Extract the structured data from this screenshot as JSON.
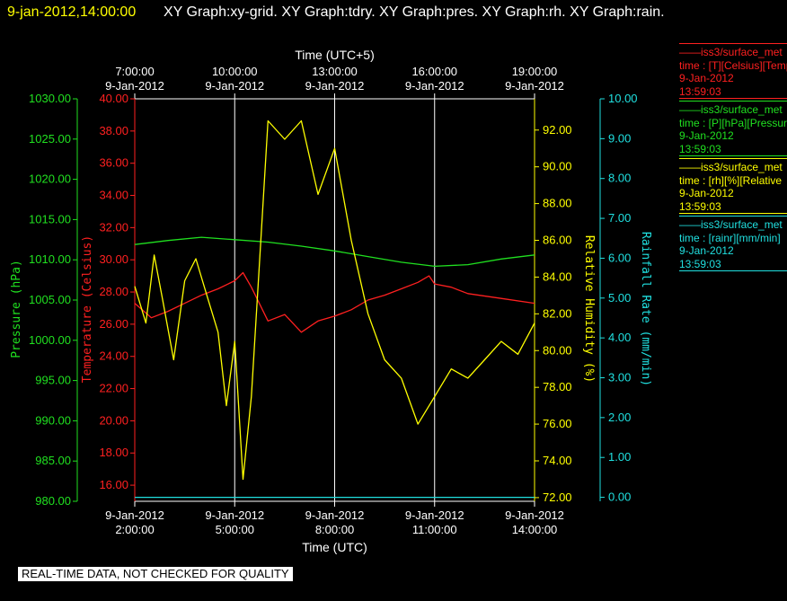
{
  "header": {
    "datetime": "9-jan-2012,14:00:00",
    "graphs": [
      "XY Graph:xy-grid.",
      "XY Graph:tdry.",
      "XY Graph:pres.",
      "XY Graph:rh.",
      "XY Graph:rain."
    ]
  },
  "colors": {
    "background": "#000000",
    "datetime": "#ffff00",
    "text": "#ffffff",
    "temperature": "#ff2020",
    "pressure": "#20e020",
    "humidity": "#ffff00",
    "rain": "#20e0e0",
    "grid": "#ffffff"
  },
  "legend": [
    {
      "line1": "——iss3/surface_met",
      "line2": "time : [T][Celsius][Temp",
      "line3": "9-Jan-2012",
      "line4": "13:59:03",
      "color": "#ff2020"
    },
    {
      "line1": "——iss3/surface_met",
      "line2": "time : [P][hPa][Pressure",
      "line3": "9-Jan-2012",
      "line4": "13:59:03",
      "color": "#20e020"
    },
    {
      "line1": "——iss3/surface_met",
      "line2": "time : [rh][%][Relative",
      "line3": "9-Jan-2012",
      "line4": "13:59:03",
      "color": "#ffff00"
    },
    {
      "line1": "——iss3/surface_met",
      "line2": "time : [rainr][mm/min]",
      "line3": "9-Jan-2012",
      "line4": "13:59:03",
      "color": "#20e0e0"
    }
  ],
  "footer": {
    "quality": "REAL-TIME DATA, NOT CHECKED FOR QUALITY"
  },
  "chart_data": {
    "type": "line",
    "grid": true,
    "x_bottom": {
      "label": "Time (UTC)",
      "range": [
        "2012-01-09 02:00",
        "2012-01-09 14:00"
      ],
      "ticks": [
        {
          "time": "2012-01-09 02:00",
          "date": "9-Jan-2012",
          "clock": "2:00:00"
        },
        {
          "time": "2012-01-09 05:00",
          "date": "9-Jan-2012",
          "clock": "5:00:00"
        },
        {
          "time": "2012-01-09 08:00",
          "date": "9-Jan-2012",
          "clock": "8:00:00"
        },
        {
          "time": "2012-01-09 11:00",
          "date": "9-Jan-2012",
          "clock": "11:00:00"
        },
        {
          "time": "2012-01-09 14:00",
          "date": "9-Jan-2012",
          "clock": "14:00:00"
        }
      ]
    },
    "x_top": {
      "label": "Time (UTC+5)",
      "ticks": [
        {
          "time": "2012-01-09 02:00",
          "clock": "7:00:00",
          "date": "9-Jan-2012"
        },
        {
          "time": "2012-01-09 05:00",
          "clock": "10:00:00",
          "date": "9-Jan-2012"
        },
        {
          "time": "2012-01-09 08:00",
          "clock": "13:00:00",
          "date": "9-Jan-2012"
        },
        {
          "time": "2012-01-09 11:00",
          "clock": "16:00:00",
          "date": "9-Jan-2012"
        },
        {
          "time": "2012-01-09 14:00",
          "clock": "19:00:00",
          "date": "9-Jan-2012"
        }
      ]
    },
    "y_axes": [
      {
        "id": "pressure",
        "label": "Pressure (hPa)",
        "range": [
          980,
          1030
        ],
        "ticks": [
          "980.00",
          "985.00",
          "990.00",
          "995.00",
          "1000.00",
          "1005.00",
          "1010.00",
          "1015.00",
          "1020.00",
          "1025.00",
          "1030.00"
        ]
      },
      {
        "id": "temperature",
        "label": "Temperature (Celsius)",
        "range": [
          15,
          40
        ],
        "ticks": [
          "16.00",
          "18.00",
          "20.00",
          "22.00",
          "24.00",
          "26.00",
          "28.00",
          "30.00",
          "32.00",
          "34.00",
          "36.00",
          "38.00",
          "40.00"
        ]
      },
      {
        "id": "humidity",
        "label": "Relative Humidity (%)",
        "range": [
          71.8,
          93.7
        ],
        "ticks": [
          "72.00",
          "74.00",
          "76.00",
          "78.00",
          "80.00",
          "82.00",
          "84.00",
          "86.00",
          "88.00",
          "90.00",
          "92.00"
        ]
      },
      {
        "id": "rain",
        "label": "Rainfall Rate (mm/min)",
        "range": [
          -0.1,
          10
        ],
        "ticks": [
          "0.00",
          "1.00",
          "2.00",
          "3.00",
          "4.00",
          "5.00",
          "6.00",
          "7.00",
          "8.00",
          "9.00",
          "10.00"
        ]
      }
    ],
    "series": [
      {
        "axis": "pressure",
        "x": [
          "2012-01-09 02:00",
          "2012-01-09 03:00",
          "2012-01-09 04:00",
          "2012-01-09 05:00",
          "2012-01-09 06:00",
          "2012-01-09 07:00",
          "2012-01-09 08:00",
          "2012-01-09 09:00",
          "2012-01-09 10:00",
          "2012-01-09 11:00",
          "2012-01-09 12:00",
          "2012-01-09 13:00",
          "2012-01-09 14:00"
        ],
        "y": [
          1011.9,
          1012.4,
          1012.8,
          1012.5,
          1012.2,
          1011.7,
          1011.1,
          1010.4,
          1009.7,
          1009.2,
          1009.4,
          1010.1,
          1010.6
        ]
      },
      {
        "axis": "temperature",
        "x": [
          "2012-01-09 02:00",
          "2012-01-09 02:30",
          "2012-01-09 03:00",
          "2012-01-09 03:30",
          "2012-01-09 04:00",
          "2012-01-09 04:30",
          "2012-01-09 05:00",
          "2012-01-09 05:15",
          "2012-01-09 05:30",
          "2012-01-09 06:00",
          "2012-01-09 06:30",
          "2012-01-09 07:00",
          "2012-01-09 07:30",
          "2012-01-09 08:00",
          "2012-01-09 08:30",
          "2012-01-09 09:00",
          "2012-01-09 09:30",
          "2012-01-09 10:00",
          "2012-01-09 10:30",
          "2012-01-09 10:50",
          "2012-01-09 11:00",
          "2012-01-09 11:30",
          "2012-01-09 12:00",
          "2012-01-09 13:00",
          "2012-01-09 14:00"
        ],
        "y": [
          27.3,
          26.4,
          26.8,
          27.3,
          27.8,
          28.2,
          28.7,
          29.2,
          28.3,
          26.2,
          26.6,
          25.5,
          26.2,
          26.5,
          26.9,
          27.5,
          27.8,
          28.2,
          28.6,
          29.0,
          28.5,
          28.3,
          27.9,
          27.6,
          27.3
        ]
      },
      {
        "axis": "humidity",
        "x": [
          "2012-01-09 02:00",
          "2012-01-09 02:20",
          "2012-01-09 02:35",
          "2012-01-09 02:50",
          "2012-01-09 03:10",
          "2012-01-09 03:30",
          "2012-01-09 03:50",
          "2012-01-09 04:10",
          "2012-01-09 04:30",
          "2012-01-09 04:45",
          "2012-01-09 05:00",
          "2012-01-09 05:15",
          "2012-01-09 05:30",
          "2012-01-09 05:45",
          "2012-01-09 06:00",
          "2012-01-09 06:30",
          "2012-01-09 07:00",
          "2012-01-09 07:30",
          "2012-01-09 08:00",
          "2012-01-09 08:30",
          "2012-01-09 09:00",
          "2012-01-09 09:30",
          "2012-01-09 10:00",
          "2012-01-09 10:30",
          "2012-01-09 11:00",
          "2012-01-09 11:30",
          "2012-01-09 12:00",
          "2012-01-09 12:30",
          "2012-01-09 13:00",
          "2012-01-09 13:30",
          "2012-01-09 14:00"
        ],
        "y": [
          83.5,
          81.5,
          85.2,
          82.8,
          79.5,
          83.8,
          85.0,
          83.0,
          81.0,
          77.0,
          80.5,
          73.0,
          77.5,
          85.0,
          92.5,
          91.5,
          92.5,
          88.5,
          91.0,
          86.0,
          82.0,
          79.5,
          78.5,
          76.0,
          77.5,
          79.0,
          78.5,
          79.5,
          80.5,
          79.8,
          81.5
        ]
      },
      {
        "axis": "rain",
        "x": [
          "2012-01-09 02:00",
          "2012-01-09 14:00"
        ],
        "y": [
          0.0,
          0.0
        ]
      }
    ]
  }
}
